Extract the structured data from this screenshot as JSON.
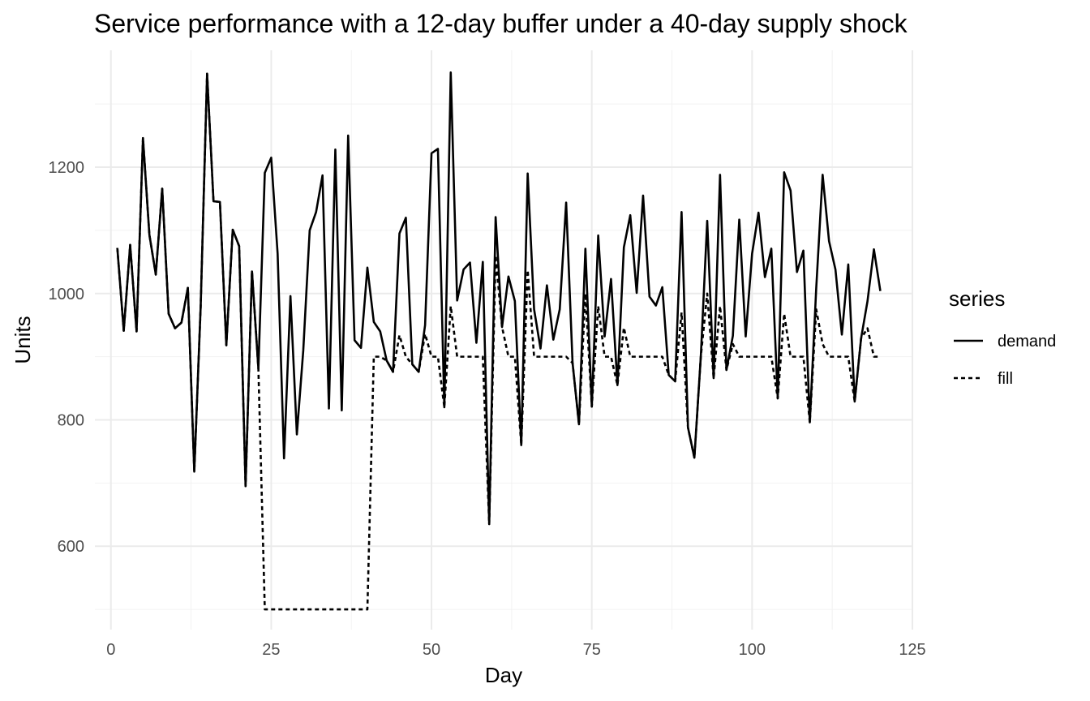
{
  "chart_data": {
    "type": "line",
    "title": "Service performance with a 12-day buffer under a 40-day supply shock",
    "xlabel": "Day",
    "ylabel": "Units",
    "xlim": [
      -2.5,
      125
    ],
    "ylim": [
      468,
      1385
    ],
    "xticks": [
      0,
      25,
      50,
      75,
      100,
      125
    ],
    "yticks": [
      600,
      800,
      1000,
      1200
    ],
    "grid": true,
    "legend": {
      "title": "series",
      "position": "right"
    },
    "series": [
      {
        "name": "demand",
        "linetype": "solid",
        "color": "#000000",
        "x": [
          1,
          2,
          3,
          4,
          5,
          6,
          7,
          8,
          9,
          10,
          11,
          12,
          13,
          14,
          15,
          16,
          17,
          18,
          19,
          20,
          21,
          22,
          23,
          24,
          25,
          26,
          27,
          28,
          29,
          30,
          31,
          32,
          33,
          34,
          35,
          36,
          37,
          38,
          39,
          40,
          41,
          42,
          43,
          44,
          45,
          46,
          47,
          48,
          49,
          50,
          51,
          52,
          53,
          54,
          55,
          56,
          57,
          58,
          59,
          60,
          61,
          62,
          63,
          64,
          65,
          66,
          67,
          68,
          69,
          70,
          71,
          72,
          73,
          74,
          75,
          76,
          77,
          78,
          79,
          80,
          81,
          82,
          83,
          84,
          85,
          86,
          87,
          88,
          89,
          90,
          91,
          92,
          93,
          94,
          95,
          96,
          97,
          98,
          99,
          100,
          101,
          102,
          103,
          104,
          105,
          106,
          107,
          108,
          109,
          110,
          111,
          112,
          113,
          114,
          115,
          116,
          117,
          118,
          119,
          120
        ],
        "values": [
          1072,
          941,
          1077,
          940,
          1246,
          1093,
          1030,
          1166,
          968,
          945,
          954,
          1009,
          718,
          980,
          1348,
          1146,
          1145,
          918,
          1101,
          1075,
          695,
          1035,
          881,
          1191,
          1215,
          1063,
          739,
          996,
          777,
          910,
          1100,
          1129,
          1187,
          818,
          1228,
          815,
          1250,
          926,
          914,
          1041,
          955,
          940,
          894,
          876,
          1095,
          1120,
          888,
          876,
          950,
          1222,
          1229,
          820,
          1350,
          989,
          1038,
          1049,
          922,
          1050,
          635,
          1121,
          947,
          1027,
          988,
          760,
          1190,
          975,
          913,
          1013,
          927,
          975,
          1144,
          890,
          793,
          1071,
          821,
          1092,
          932,
          1023,
          855,
          1073,
          1124,
          1001,
          1155,
          995,
          981,
          1010,
          871,
          861,
          1129,
          788,
          740,
          900,
          1115,
          866,
          1188,
          879,
          933,
          1117,
          932,
          1063,
          1128,
          1026,
          1071,
          834,
          1192,
          1163,
          1034,
          1068,
          796,
          1008,
          1188,
          1083,
          1038,
          935,
          1046,
          829,
          929,
          988,
          1070,
          1004
        ]
      },
      {
        "name": "fill",
        "linetype": "dashed",
        "color": "#000000",
        "x": [
          1,
          2,
          3,
          4,
          5,
          6,
          7,
          8,
          9,
          10,
          11,
          12,
          13,
          14,
          15,
          16,
          17,
          18,
          19,
          20,
          21,
          22,
          23,
          24,
          25,
          26,
          27,
          28,
          29,
          30,
          31,
          32,
          33,
          34,
          35,
          36,
          37,
          38,
          39,
          40,
          41,
          42,
          43,
          44,
          45,
          46,
          47,
          48,
          49,
          50,
          51,
          52,
          53,
          54,
          55,
          56,
          57,
          58,
          59,
          60,
          61,
          62,
          63,
          64,
          65,
          66,
          67,
          68,
          69,
          70,
          71,
          72,
          73,
          74,
          75,
          76,
          77,
          78,
          79,
          80,
          81,
          82,
          83,
          84,
          85,
          86,
          87,
          88,
          89,
          90,
          91,
          92,
          93,
          94,
          95,
          96,
          97,
          98,
          99,
          100,
          101,
          102,
          103,
          104,
          105,
          106,
          107,
          108,
          109,
          110,
          111,
          112,
          113,
          114,
          115,
          116,
          117,
          118,
          119,
          120
        ],
        "values": [
          1072,
          941,
          1077,
          940,
          1246,
          1093,
          1030,
          1166,
          968,
          945,
          954,
          1009,
          718,
          980,
          1348,
          1146,
          1145,
          918,
          1101,
          1075,
          695,
          1035,
          881,
          500,
          500,
          500,
          500,
          500,
          500,
          500,
          500,
          500,
          500,
          500,
          500,
          500,
          500,
          500,
          500,
          500,
          900,
          900,
          894,
          876,
          934,
          900,
          888,
          876,
          936,
          900,
          900,
          820,
          980,
          900,
          900,
          900,
          900,
          900,
          635,
          1060,
          947,
          900,
          900,
          760,
          1037,
          900,
          900,
          900,
          900,
          900,
          900,
          890,
          793,
          1000,
          821,
          980,
          900,
          900,
          855,
          946,
          900,
          900,
          900,
          900,
          900,
          900,
          871,
          861,
          970,
          788,
          740,
          900,
          1000,
          866,
          980,
          879,
          920,
          900,
          900,
          900,
          900,
          900,
          900,
          834,
          968,
          900,
          900,
          900,
          796,
          975,
          920,
          900,
          900,
          900,
          900,
          829,
          929,
          945,
          900,
          900
        ]
      }
    ]
  }
}
